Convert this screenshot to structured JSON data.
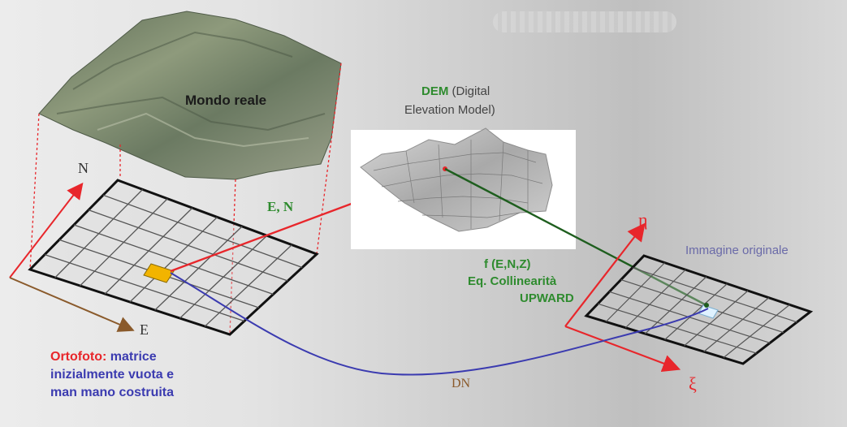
{
  "labels": {
    "mondo_reale": "Mondo reale",
    "north": "N",
    "east": "E",
    "en": "E, N",
    "dem_abbr": "DEM",
    "dem_desc_1": "(Digital",
    "dem_desc_2": "Elevation Model)",
    "f_enz": "f (E,N,Z)",
    "eq_coll": "Eq. Collinearità",
    "upward": "UPWARD",
    "eta": "η",
    "xi": "ξ",
    "immagine_originale": "Immagine originale",
    "ortofoto": "Ortofoto:",
    "ortofoto_desc_1": "matrice",
    "ortofoto_desc_2": "inizialmente vuota e",
    "ortofoto_desc_3": "man mano costruita",
    "dn": "DN"
  },
  "colors": {
    "red": "#e8262b",
    "green": "#2e8b2e",
    "dark_green": "#1e5e1e",
    "blue": "#3b3bb0",
    "purple_blue": "#6a6aa8",
    "brown": "#8a5a2b",
    "pixel": "#f2b400"
  },
  "icons": {
    "terrain": "satellite-terrain-image",
    "dem": "dem-wireframe-surface"
  }
}
